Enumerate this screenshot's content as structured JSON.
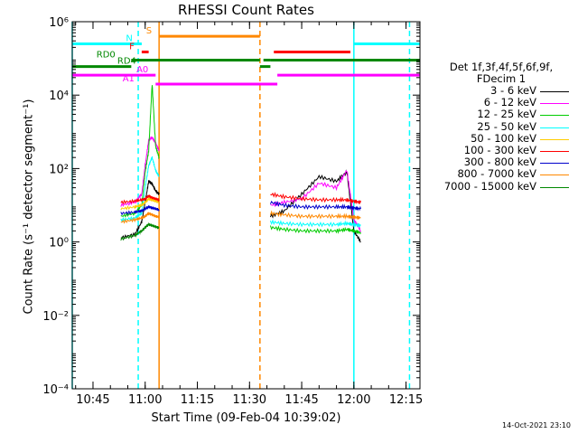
{
  "chart_data": {
    "type": "line",
    "title": "RHESSI Count Rates",
    "xlabel": "Start Time (09-Feb-04 10:39:02)",
    "ylabel": "Count Rate (s⁻¹ detector segment⁻¹)",
    "x_ticks": [
      "10:45",
      "11:00",
      "11:15",
      "11:30",
      "11:45",
      "12:00",
      "12:15"
    ],
    "xlim": [
      "10:39:02",
      "12:19:00"
    ],
    "y_scale": "log",
    "ylim": [
      0.0001,
      1000000
    ],
    "y_ticks": [
      "10⁻⁴",
      "10⁻²",
      "10⁰",
      "10²",
      "10⁴",
      "10⁶"
    ],
    "grid": false,
    "legend_position": "right",
    "legend_header": [
      "Det 1f,3f,4f,5f,6f,9f,",
      "FDecim 1"
    ],
    "series": [
      {
        "name": "3 - 6 keV",
        "color": "#000000",
        "x": [
          "10:53",
          "10:57",
          "10:59",
          "11:00",
          "11:01",
          "11:02",
          "11:03",
          "11:04"
        ],
        "y": [
          1.3,
          1.6,
          3.5,
          12,
          45,
          38,
          25,
          20
        ]
      },
      {
        "name": "6 - 12 keV",
        "color": "#ff00ff",
        "x": [
          "10:53",
          "10:57",
          "10:59",
          "11:00",
          "11:01",
          "11:02",
          "11:03",
          "11:04"
        ],
        "y": [
          10,
          12,
          20,
          120,
          600,
          700,
          500,
          300
        ]
      },
      {
        "name": "12 - 25 keV",
        "color": "#00cc00",
        "x": [
          "10:53",
          "10:57",
          "10:59",
          "11:00",
          "11:01",
          "11:02",
          "11:03",
          "11:04"
        ],
        "y": [
          5,
          6,
          10,
          80,
          300,
          20000,
          400,
          200
        ]
      },
      {
        "name": "25 - 50 keV",
        "color": "#00ffff",
        "x": [
          "10:53",
          "10:57",
          "10:59",
          "11:00",
          "11:01",
          "11:02",
          "11:03",
          "11:04"
        ],
        "y": [
          4,
          4.5,
          6,
          30,
          120,
          200,
          90,
          60
        ]
      },
      {
        "name": "50 - 100 keV",
        "color": "#ffcc00",
        "x": [
          "10:53",
          "10:57",
          "10:59",
          "11:00",
          "11:01",
          "11:02",
          "11:03",
          "11:04"
        ],
        "y": [
          8,
          9,
          10,
          12,
          15,
          14,
          13,
          12
        ]
      },
      {
        "name": "100 - 300 keV",
        "color": "#ff0000",
        "x": [
          "10:53",
          "10:57",
          "10:59",
          "11:00",
          "11:01",
          "11:02",
          "11:03",
          "11:04"
        ],
        "y": [
          12,
          13,
          14,
          15,
          18,
          16,
          15,
          14
        ]
      },
      {
        "name": "300 - 800 keV",
        "color": "#0000cc",
        "x": [
          "10:53",
          "10:57",
          "10:59",
          "11:00",
          "11:01",
          "11:02",
          "11:03",
          "11:04"
        ],
        "y": [
          6,
          6.5,
          7,
          8,
          9,
          8.5,
          8,
          7.5
        ]
      },
      {
        "name": "800 - 7000 keV",
        "color": "#ff8800",
        "x": [
          "10:53",
          "10:57",
          "10:59",
          "11:00",
          "11:01",
          "11:02",
          "11:03",
          "11:04"
        ],
        "y": [
          3.5,
          4,
          4.5,
          5,
          6,
          5.5,
          5,
          4.8
        ]
      },
      {
        "name": "7000 - 15000 keV",
        "color": "#008800",
        "x": [
          "10:53",
          "10:57",
          "10:59",
          "11:00",
          "11:01",
          "11:02",
          "11:03",
          "11:04"
        ],
        "y": [
          1.2,
          1.5,
          2,
          2.5,
          3,
          2.8,
          2.6,
          2.4
        ]
      }
    ],
    "series_after_gap": [
      {
        "name": "3 - 6 keV",
        "x": [
          "11:36",
          "11:40",
          "11:45",
          "11:50",
          "11:55",
          "11:58",
          "12:00",
          "12:02"
        ],
        "y": [
          5,
          7,
          20,
          60,
          45,
          80,
          2,
          1
        ]
      },
      {
        "name": "6 - 12 keV",
        "x": [
          "11:36",
          "11:40",
          "11:45",
          "11:50",
          "11:55",
          "11:58",
          "12:00",
          "12:02"
        ],
        "y": [
          10,
          12,
          15,
          40,
          30,
          90,
          4,
          2
        ]
      },
      {
        "name": "12 - 25 keV",
        "x": [
          "11:36",
          "11:40",
          "11:45",
          "11:50",
          "11:55",
          "11:58",
          "12:00",
          "12:02"
        ],
        "y": [
          2.5,
          2.2,
          2,
          2,
          2,
          2.2,
          2,
          1.8
        ]
      },
      {
        "name": "25 - 50 keV",
        "x": [
          "11:36",
          "11:40",
          "11:45",
          "11:50",
          "11:55",
          "11:58",
          "12:00",
          "12:02"
        ],
        "y": [
          3.5,
          3.2,
          3,
          3,
          3,
          3.2,
          3,
          2.8
        ]
      },
      {
        "name": "100 - 300 keV",
        "x": [
          "11:36",
          "11:40",
          "11:45",
          "11:50",
          "11:55",
          "11:58",
          "12:00",
          "12:02"
        ],
        "y": [
          20,
          17,
          15,
          14,
          14,
          14,
          13,
          12
        ]
      },
      {
        "name": "300 - 800 keV",
        "x": [
          "11:36",
          "11:40",
          "11:45",
          "11:50",
          "11:55",
          "11:58",
          "12:00",
          "12:02"
        ],
        "y": [
          12,
          10,
          9,
          9,
          9,
          9,
          8.5,
          8
        ]
      },
      {
        "name": "800 - 7000 keV",
        "x": [
          "11:36",
          "11:40",
          "11:45",
          "11:50",
          "11:55",
          "11:58",
          "12:00",
          "12:02"
        ],
        "y": [
          6,
          5.5,
          5,
          5,
          5,
          5,
          4.8,
          4.5
        ]
      }
    ],
    "state_bars": [
      {
        "label": "N",
        "color": "#00ffff",
        "y": 250000,
        "segments": [
          [
            "10:39:02",
            "10:59"
          ],
          [
            "12:00",
            "12:19:00"
          ]
        ]
      },
      {
        "label": "S",
        "color": "#ff8800",
        "y": 400000,
        "segments": [
          [
            "11:04",
            "11:33"
          ]
        ]
      },
      {
        "label": "F",
        "color": "#ff0000",
        "y": 150000,
        "segments": [
          [
            "10:59",
            "11:01"
          ],
          [
            "11:37",
            "11:59"
          ]
        ]
      },
      {
        "label": "RD0",
        "color": "#008800",
        "y": 90000,
        "segments": [
          [
            "10:56",
            "11:33"
          ],
          [
            "11:34",
            "11:36"
          ],
          [
            "11:36",
            "12:19:00"
          ]
        ]
      },
      {
        "label": "RD4",
        "color": "#008800",
        "y": 60000,
        "segments": [
          [
            "10:39:02",
            "10:56"
          ],
          [
            "11:33",
            "11:36"
          ]
        ]
      },
      {
        "label": "A0",
        "color": "#ff00ff",
        "y": 35000,
        "segments": [
          [
            "10:39:02",
            "11:03"
          ],
          [
            "11:38",
            "12:19:00"
          ]
        ]
      },
      {
        "label": "A1",
        "color": "#ff00ff",
        "y": 20000,
        "segments": [
          [
            "11:03",
            "11:38"
          ]
        ]
      }
    ],
    "vertical_markers": [
      {
        "x": "10:39:02",
        "color": "#00ffff",
        "style": "solid"
      },
      {
        "x": "10:58",
        "color": "#00ffff",
        "style": "dashed"
      },
      {
        "x": "11:04",
        "color": "#ff8800",
        "style": "solid"
      },
      {
        "x": "11:33",
        "color": "#ff8800",
        "style": "dashed"
      },
      {
        "x": "12:00",
        "color": "#00ffff",
        "style": "solid"
      },
      {
        "x": "12:16",
        "color": "#00ffff",
        "style": "dashed"
      }
    ]
  },
  "footer": {
    "timestamp": "14-Oct-2021 23:10"
  }
}
